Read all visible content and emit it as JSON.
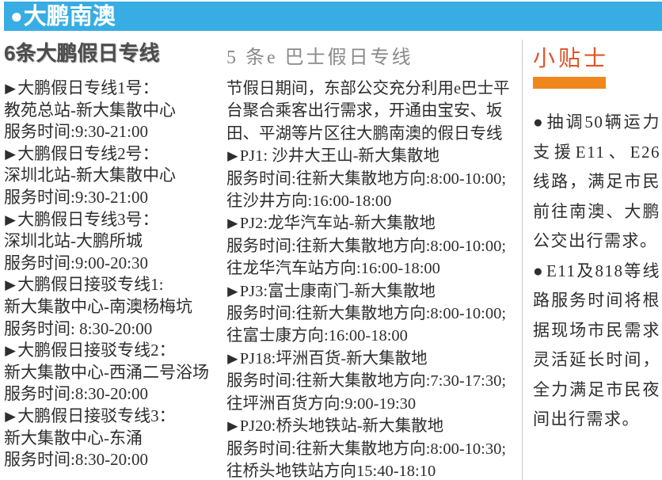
{
  "icons": {
    "circle_bullet": "●",
    "triangle_bullet": "▶",
    "dot_bullet": "●"
  },
  "colors": {
    "header_bg": "#38ade3",
    "header_text": "#ffffff",
    "tips_heading_red": "#e0552a",
    "tips_underline_orange": "#f0871c",
    "body_text": "#2e2e2e",
    "left_heading_gray": "#4c4c4c",
    "mid_heading_gray": "#8a8a8a"
  },
  "header": {
    "title": "大鹏南澳"
  },
  "dapeng": {
    "heading": "6条大鹏假日专线",
    "routes": [
      {
        "name": "大鹏假日专线1号：",
        "path": "教苑总站-新大集散中心",
        "time": "服务时间:9:30-21:00"
      },
      {
        "name": "大鹏假日专线2号：",
        "path": "深圳北站-新大集散中心",
        "time": "服务时间:9:30-21:00"
      },
      {
        "name": "大鹏假日专线3号：",
        "path": "深圳北站-大鹏所城",
        "time": "服务时间:9:00-20:30"
      },
      {
        "name": "大鹏假日接驳专线1:",
        "path": "新大集散中心-南澳杨梅坑",
        "time": "服务时间: 8:30-20:00"
      },
      {
        "name": "大鹏假日接驳专线2：",
        "path": "新大集散中心-西涌二号浴场",
        "time": "服务时间:8:30-20:00"
      },
      {
        "name": "大鹏假日接驳专线3：",
        "path": "新大集散中心-东涌",
        "time": "服务时间:8:30-20:00"
      }
    ]
  },
  "ebus": {
    "heading": "5 条e 巴士假日专线",
    "intro": "节假日期间，东部公交充分利用e巴士平台聚合乘客出行需求，开通由宝安、坂田、平湖等片区往大鹏南澳的假日专线",
    "routes": [
      {
        "name": "PJ1: 沙井大王山-新大集散地",
        "time": "服务时间:往新大集散地方向:8:00-10:00;往沙井方向:16:00-18:00"
      },
      {
        "name": "PJ2:龙华汽车站-新大集散地",
        "time": "服务时间:往新大集散地方向:8:00-10:00;往龙华汽车站方向:16:00-18:00"
      },
      {
        "name": "PJ3:富士康南门-新大集散地",
        "time": "服务时间:往新大集散地方向:8:00-10:00;往富士康方向:16:00-18:00"
      },
      {
        "name": "PJ18:坪洲百货-新大集散地",
        "time": "服务时间:往新大集散地方向:7:30-17:30;往坪洲百货方向:9:00-19:30"
      },
      {
        "name": "PJ20:桥头地铁站-新大集散地",
        "time": "服务时间:往新大集散地方向:8:00-10:30;往桥头地铁站方向15:40-18:10"
      }
    ]
  },
  "tips": {
    "heading": "小贴士",
    "items": [
      {
        "text": "抽调50辆运力支援E11、E26线路，满足市民前往南澳、大鹏公交出行需求。"
      },
      {
        "text": "E11及818等线路服务时间将根据现场市民需求灵活延长时间，全力满足市民夜间出行需求。"
      }
    ]
  }
}
